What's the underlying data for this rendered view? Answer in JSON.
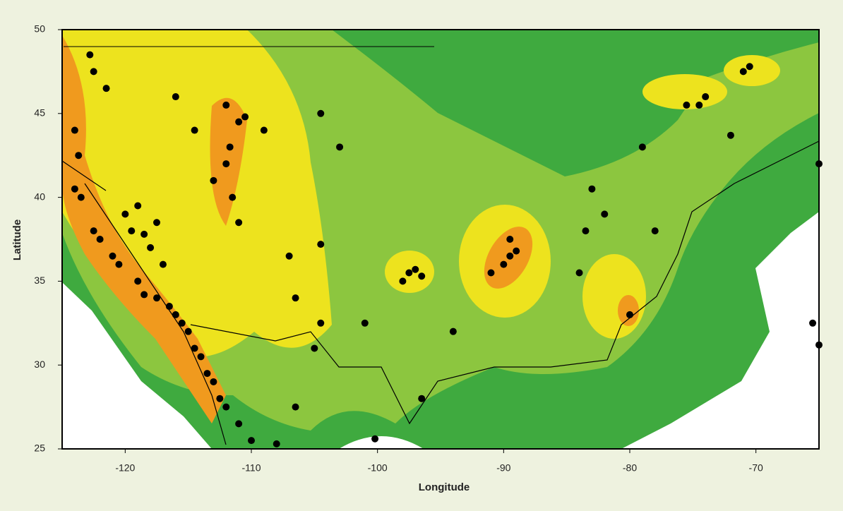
{
  "chart_data": {
    "type": "scatter",
    "x_label": "Longitude",
    "y_label": "Latitude",
    "xlim": [
      -125,
      -65
    ],
    "ylim": [
      25,
      50
    ],
    "xticks": [
      -120,
      -110,
      -100,
      -90,
      -80,
      -70
    ],
    "yticks": [
      25,
      30,
      35,
      40,
      45,
      50
    ],
    "color": "#000000",
    "x": [
      -124,
      -123.5,
      -122.5,
      -122,
      -121,
      -120.5,
      -119,
      -118.5,
      -117.5,
      -116.5,
      -116,
      -115.5,
      -115,
      -114.5,
      -114,
      -113.5,
      -113,
      -112.5,
      -112,
      -111,
      -110,
      -119.5,
      -118.5,
      -118,
      -117,
      -119,
      -120,
      -117.5,
      -122.5,
      -122.8,
      -124,
      -123.7,
      -121.5,
      -113,
      -112,
      -111.7,
      -111,
      -112,
      -111.5,
      -111,
      -114.5,
      -116,
      -109,
      -110.5,
      -107,
      -106.5,
      -104.5,
      -104.5,
      -105,
      -97.5,
      -97,
      -96.5,
      -98,
      -101,
      -94,
      -90,
      -89.5,
      -89,
      -91,
      -89.5,
      -84,
      -83.5,
      -80,
      -78,
      -75.5,
      -74.5,
      -74,
      -71,
      -70.5,
      -72,
      -65,
      -65.5,
      -65,
      -104.5,
      -103,
      -96.5,
      -100.2,
      -108,
      -106.5,
      -82,
      -83,
      -79
    ],
    "y": [
      40.5,
      40,
      38,
      37.5,
      36.5,
      36,
      35,
      34.2,
      34,
      33.5,
      33,
      32.5,
      32,
      31,
      30.5,
      29.5,
      29,
      28,
      27.5,
      26.5,
      25.5,
      38,
      37.8,
      37,
      36,
      39.5,
      39,
      38.5,
      47.5,
      48.5,
      44,
      42.5,
      46.5,
      41,
      42,
      43,
      44.5,
      45.5,
      40,
      38.5,
      44,
      46,
      44,
      44.8,
      36.5,
      34,
      37.2,
      32.5,
      31,
      35.5,
      35.7,
      35.3,
      35,
      32.5,
      32,
      36,
      36.5,
      36.8,
      35.5,
      37.5,
      35.5,
      38,
      33,
      38,
      45.5,
      45.5,
      46,
      47.5,
      47.8,
      43.7,
      42,
      32.5,
      31.2,
      45,
      43,
      28,
      25.6,
      25.3,
      27.5,
      39,
      40.5,
      43
    ]
  }
}
